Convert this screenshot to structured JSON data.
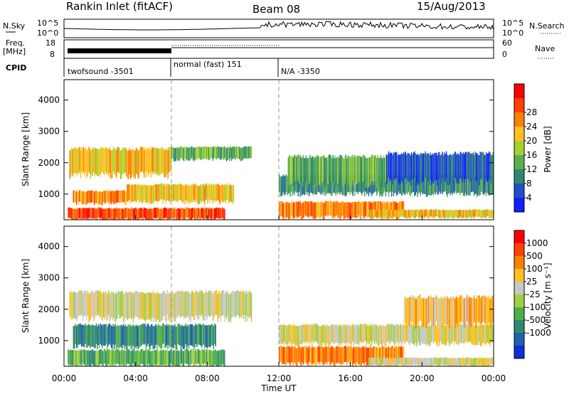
{
  "header": {
    "title": "Rankin Inlet (fitACF)",
    "beam": "Beam 08",
    "date": "15/Aug/2013"
  },
  "strips": {
    "nsky_label": "N.Sky",
    "nsky_ticks": [
      "10^5",
      "10^0"
    ],
    "nsearch_label": "N.Search",
    "nsearch_ticks": [
      "10^5",
      "10^0"
    ],
    "freq_label": "Freq.",
    "freq_unit": "[MHz]",
    "freq_ticks": [
      "18",
      "8"
    ],
    "nave_label": "Nave",
    "nave_ticks": [
      "60",
      "0"
    ],
    "cpid_label": "CPID",
    "cpid_segments": [
      {
        "start_hour": 0,
        "end_hour": 6,
        "label": "twofsound -3501"
      },
      {
        "start_hour": 6,
        "end_hour": 12,
        "label": "normal (fast) 151"
      },
      {
        "start_hour": 12,
        "end_hour": 24,
        "label": "N/A -3350"
      }
    ]
  },
  "chart_data": [
    {
      "type": "heatmap",
      "name": "power",
      "ylabel": "Slant Range [km]",
      "xlabel": "",
      "x_range_hours": [
        0,
        24
      ],
      "ylim_km": [
        180,
        4650
      ],
      "y_ticks": [
        1000,
        2000,
        3000,
        4000
      ],
      "colorbar": {
        "label": "Power [dB]",
        "levels": [
          0,
          4,
          8,
          12,
          16,
          20,
          24,
          28,
          32
        ],
        "tick_labels": [
          "4",
          "8",
          "12",
          "16",
          "20",
          "24",
          "28"
        ],
        "colors": [
          "#1020ff",
          "#2050c8",
          "#2e8a6e",
          "#5cb050",
          "#a8d030",
          "#ffc020",
          "#ff8000",
          "#ff4000",
          "#ff0000"
        ]
      },
      "bands": [
        {
          "t0": 0.3,
          "t1": 6.0,
          "r0": 1600,
          "r1": 2450,
          "level": 5
        },
        {
          "t0": 6.0,
          "t1": 10.5,
          "r0": 2100,
          "r1": 2500,
          "level": 3
        },
        {
          "t0": 0.5,
          "t1": 3.5,
          "r0": 700,
          "r1": 1100,
          "level": 6
        },
        {
          "t0": 3.5,
          "t1": 9.5,
          "r0": 750,
          "r1": 1300,
          "level": 5
        },
        {
          "t0": 0.2,
          "t1": 9.0,
          "r0": 200,
          "r1": 550,
          "level": 7
        },
        {
          "t0": 12.0,
          "t1": 19.0,
          "r0": 250,
          "r1": 750,
          "level": 6
        },
        {
          "t0": 17.0,
          "t1": 24.0,
          "r0": 250,
          "r1": 500,
          "level": 5
        },
        {
          "t0": 12.0,
          "t1": 24.0,
          "r0": 1000,
          "r1": 1600,
          "level": 2
        },
        {
          "t0": 12.5,
          "t1": 18.0,
          "r0": 1300,
          "r1": 2200,
          "level": 3
        },
        {
          "t0": 18.0,
          "t1": 24.0,
          "r0": 1400,
          "r1": 2300,
          "level": 1
        }
      ]
    },
    {
      "type": "heatmap",
      "name": "velocity",
      "ylabel": "Slant Range [km]",
      "xlabel": "Time UT",
      "x_range_hours": [
        0,
        24
      ],
      "x_tick_labels": [
        "00:00",
        "04:00",
        "08:00",
        "12:00",
        "16:00",
        "20:00",
        "00:00"
      ],
      "ylim_km": [
        180,
        4650
      ],
      "y_ticks": [
        1000,
        2000,
        3000,
        4000
      ],
      "colorbar": {
        "label": "Velocity [m s⁻¹]",
        "tick_labels": [
          "1000",
          "500",
          "100",
          "25",
          "-25",
          "-100",
          "-500",
          "-1000"
        ],
        "colors": [
          "#1030d0",
          "#2060b0",
          "#2e8a6e",
          "#50b048",
          "#a0d040",
          "#c8c8c8",
          "#ffc020",
          "#ff8000",
          "#ff4000",
          "#ff0000"
        ]
      },
      "bands": [
        {
          "t0": 0.3,
          "t1": 10.5,
          "r0": 1700,
          "r1": 2550,
          "level": 5
        },
        {
          "t0": 0.5,
          "t1": 8.5,
          "r0": 800,
          "r1": 1500,
          "level": 2
        },
        {
          "t0": 0.2,
          "t1": 9.0,
          "r0": 200,
          "r1": 700,
          "level": 3
        },
        {
          "t0": 12.0,
          "t1": 19.0,
          "r0": 250,
          "r1": 800,
          "level": 7
        },
        {
          "t0": 12.0,
          "t1": 24.0,
          "r0": 900,
          "r1": 1500,
          "level": 5
        },
        {
          "t0": 19.0,
          "t1": 24.0,
          "r0": 1500,
          "r1": 2400,
          "level": 6
        },
        {
          "t0": 17.0,
          "t1": 24.0,
          "r0": 200,
          "r1": 450,
          "level": 5
        }
      ]
    }
  ]
}
